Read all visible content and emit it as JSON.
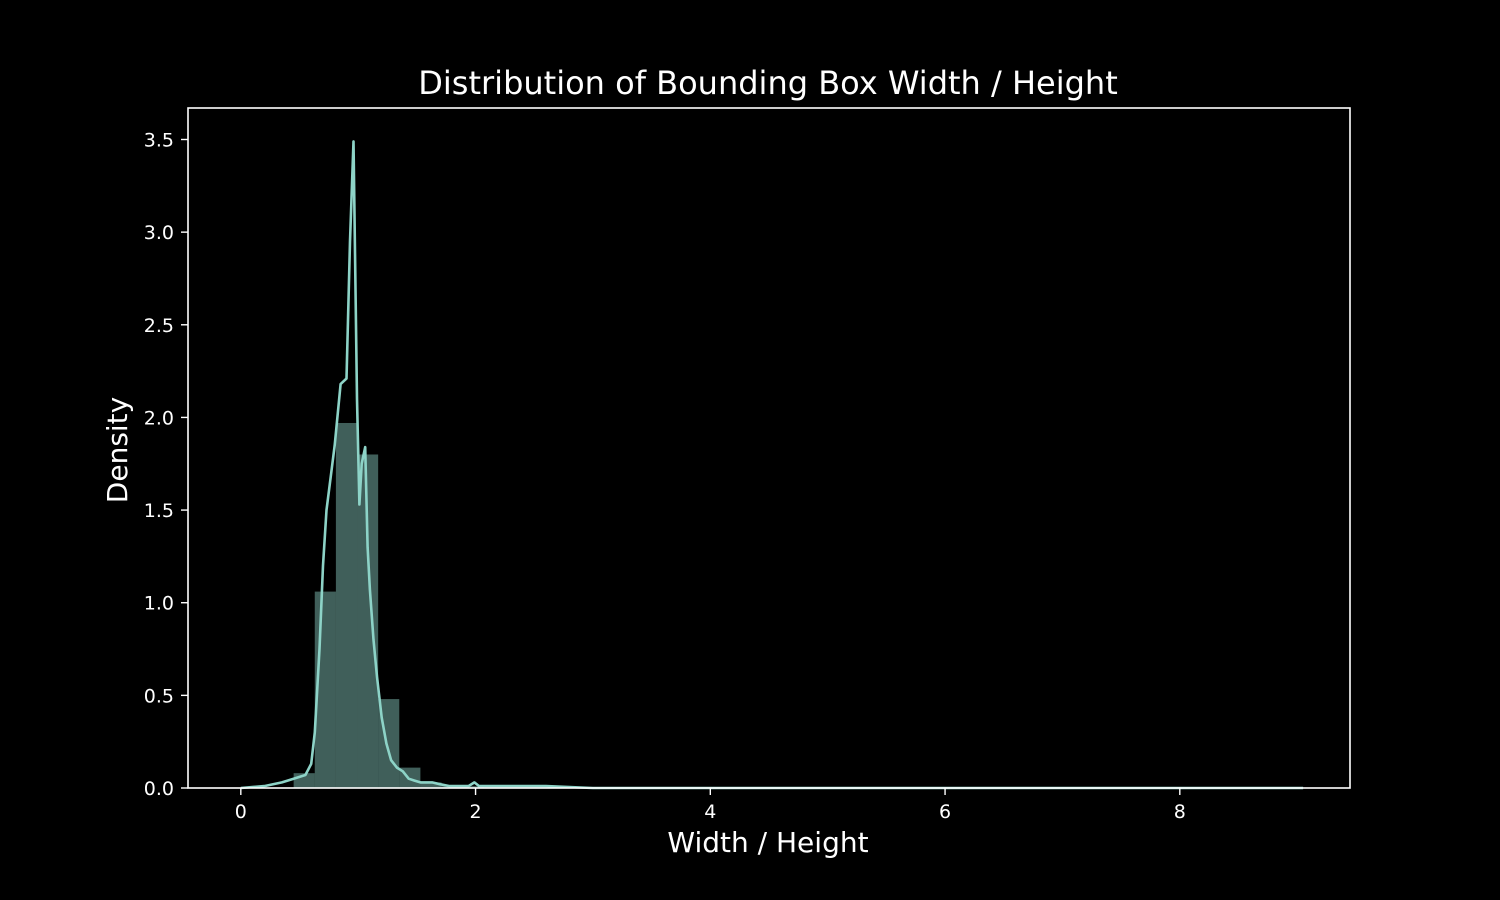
{
  "chart_data": {
    "type": "histogram",
    "title": "Distribution of Bounding Box Width / Height",
    "xlabel": "Width / Height",
    "ylabel": "Density",
    "xlim": [
      -0.45,
      9.45
    ],
    "ylim": [
      0,
      3.67
    ],
    "xticks": [
      0,
      2,
      4,
      6,
      8
    ],
    "yticks": [
      0.0,
      0.5,
      1.0,
      1.5,
      2.0,
      2.5,
      3.0,
      3.5
    ],
    "histogram": {
      "bin_width": 0.18,
      "bins": [
        {
          "x0": 0.0,
          "density": 0.0
        },
        {
          "x0": 0.18,
          "density": 0.0
        },
        {
          "x0": 0.45,
          "density": 0.08
        },
        {
          "x0": 0.63,
          "density": 1.06
        },
        {
          "x0": 0.81,
          "density": 1.97
        },
        {
          "x0": 0.99,
          "density": 1.8
        },
        {
          "x0": 1.17,
          "density": 0.48
        },
        {
          "x0": 1.35,
          "density": 0.11
        },
        {
          "x0": 1.53,
          "density": 0.03
        },
        {
          "x0": 1.71,
          "density": 0.01
        },
        {
          "x0": 1.89,
          "density": 0.01
        }
      ]
    },
    "kde": {
      "x": [
        0.0,
        0.2,
        0.35,
        0.45,
        0.55,
        0.6,
        0.63,
        0.67,
        0.7,
        0.73,
        0.77,
        0.8,
        0.85,
        0.9,
        0.93,
        0.96,
        0.99,
        1.01,
        1.03,
        1.06,
        1.08,
        1.1,
        1.13,
        1.16,
        1.2,
        1.24,
        1.28,
        1.33,
        1.38,
        1.43,
        1.48,
        1.53,
        1.58,
        1.63,
        1.7,
        1.78,
        1.86,
        1.94,
        1.99,
        2.03,
        2.2,
        2.6,
        3.0,
        4.0,
        5.0,
        6.0,
        7.0,
        8.0,
        9.05
      ],
      "y": [
        0.0,
        0.01,
        0.03,
        0.05,
        0.07,
        0.13,
        0.3,
        0.75,
        1.2,
        1.5,
        1.7,
        1.85,
        2.18,
        2.21,
        2.95,
        3.49,
        2.1,
        1.53,
        1.75,
        1.84,
        1.3,
        1.07,
        0.8,
        0.6,
        0.38,
        0.24,
        0.15,
        0.11,
        0.09,
        0.05,
        0.04,
        0.03,
        0.03,
        0.03,
        0.02,
        0.01,
        0.01,
        0.01,
        0.03,
        0.01,
        0.01,
        0.01,
        0.0,
        0.0,
        0.0,
        0.0,
        0.0,
        0.0,
        0.0
      ]
    },
    "colors": {
      "background": "#000000",
      "axes": "#ffffff",
      "text": "#ffffff",
      "series": "#8dd3c7",
      "bars": "#8dd3c7",
      "bar_opacity": 0.45
    },
    "grid": false,
    "legend": "none"
  }
}
